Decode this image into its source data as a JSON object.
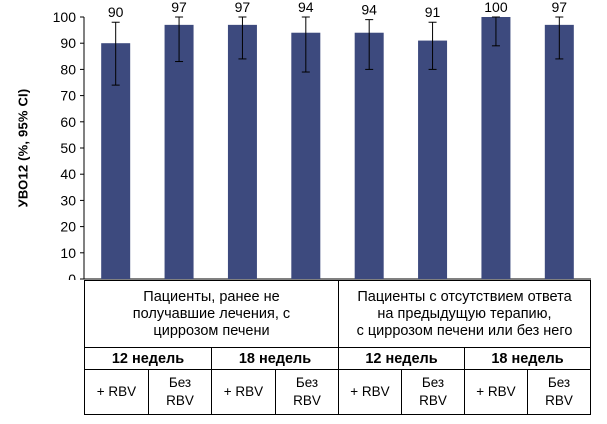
{
  "chart_data": {
    "type": "bar",
    "ylabel": "УВО12 (%, 95% CI)",
    "ylim": [
      0,
      100
    ],
    "yticks": [
      0,
      10,
      20,
      30,
      40,
      50,
      60,
      70,
      80,
      90,
      100
    ],
    "values": [
      90,
      97,
      97,
      94,
      94,
      91,
      100,
      97
    ],
    "data_labels": [
      "90",
      "97",
      "97",
      "94",
      "94",
      "91",
      "100",
      "97"
    ],
    "ci_low": [
      74,
      83,
      84,
      79,
      80,
      80,
      89,
      84
    ],
    "ci_high": [
      98,
      100,
      100,
      100,
      99,
      98,
      100,
      100
    ],
    "bar_color": "#3d4a7e",
    "grid": false
  },
  "table": {
    "groups": [
      {
        "lines": [
          "Пациенты, ранее не",
          "получавшие лечения, с",
          "циррозом печени"
        ]
      },
      {
        "lines": [
          "Пациенты с отсутствием ответа",
          "на предыдущую терапию,",
          "с циррозом печени или без него"
        ]
      }
    ],
    "durations": [
      "12 недель",
      "18 недель",
      "12 недель",
      "18 недель"
    ],
    "treatments": [
      {
        "lines": [
          "+ RBV"
        ]
      },
      {
        "lines": [
          "Без",
          "RBV"
        ]
      },
      {
        "lines": [
          "+ RBV"
        ]
      },
      {
        "lines": [
          "Без",
          "RBV"
        ]
      },
      {
        "lines": [
          "+ RBV"
        ]
      },
      {
        "lines": [
          "Без",
          "RBV"
        ]
      },
      {
        "lines": [
          "+ RBV"
        ]
      },
      {
        "lines": [
          "Без",
          "RBV"
        ]
      }
    ]
  }
}
